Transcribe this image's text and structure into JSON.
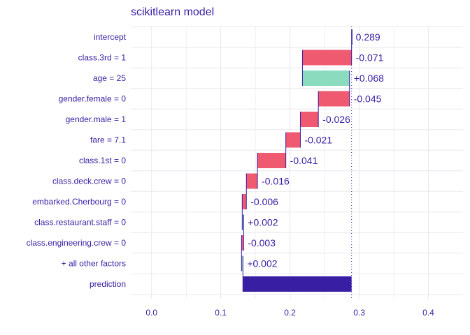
{
  "chart_data": {
    "type": "waterfall",
    "title": "scikitlearn  model",
    "xlabel": "",
    "ylabel": "",
    "xlim": [
      -0.03,
      0.45
    ],
    "x_ticks": [
      0.0,
      0.1,
      0.2,
      0.3,
      0.4
    ],
    "x_tick_labels": [
      "0.0",
      "0.1",
      "0.2",
      "0.3",
      "0.4"
    ],
    "grid": true,
    "reference_value": 0.289,
    "colors": {
      "positive": "#8bdcbe",
      "negative": "#f05a71",
      "prediction": "#371ea3",
      "connector": "#371ea3",
      "text": "#371ea3",
      "grid": "#e8e8ef",
      "reference_line": "#371ea3"
    },
    "rows": [
      {
        "variable": "intercept",
        "contribution": 0.289,
        "start": 0.289,
        "end": 0.289,
        "label": "0.289",
        "kind": "intercept"
      },
      {
        "variable": "class.3rd = 1",
        "contribution": -0.071,
        "start": 0.289,
        "end": 0.218,
        "label": "-0.071",
        "kind": "negative"
      },
      {
        "variable": "age = 25",
        "contribution": 0.068,
        "start": 0.218,
        "end": 0.286,
        "label": "+0.068",
        "kind": "positive"
      },
      {
        "variable": "gender.female = 0",
        "contribution": -0.045,
        "start": 0.286,
        "end": 0.241,
        "label": "-0.045",
        "kind": "negative"
      },
      {
        "variable": "gender.male = 1",
        "contribution": -0.026,
        "start": 0.241,
        "end": 0.215,
        "label": "-0.026",
        "kind": "negative"
      },
      {
        "variable": "fare = 7.1",
        "contribution": -0.021,
        "start": 0.215,
        "end": 0.194,
        "label": "-0.021",
        "kind": "negative"
      },
      {
        "variable": "class.1st = 0",
        "contribution": -0.041,
        "start": 0.194,
        "end": 0.153,
        "label": "-0.041",
        "kind": "negative"
      },
      {
        "variable": "class.deck.crew = 0",
        "contribution": -0.016,
        "start": 0.153,
        "end": 0.137,
        "label": "-0.016",
        "kind": "negative"
      },
      {
        "variable": "embarked.Cherbourg = 0",
        "contribution": -0.006,
        "start": 0.137,
        "end": 0.131,
        "label": "-0.006",
        "kind": "negative"
      },
      {
        "variable": "class.restaurant.staff = 0",
        "contribution": 0.002,
        "start": 0.131,
        "end": 0.133,
        "label": "+0.002",
        "kind": "positive"
      },
      {
        "variable": "class.engineering.crew = 0",
        "contribution": -0.003,
        "start": 0.133,
        "end": 0.13,
        "label": "-0.003",
        "kind": "negative"
      },
      {
        "variable": "+ all other factors",
        "contribution": 0.002,
        "start": 0.13,
        "end": 0.132,
        "label": "+0.002",
        "kind": "positive"
      },
      {
        "variable": "prediction",
        "contribution": 0.132,
        "start": 0.132,
        "end": 0.289,
        "label": "0.132",
        "kind": "prediction"
      }
    ]
  }
}
